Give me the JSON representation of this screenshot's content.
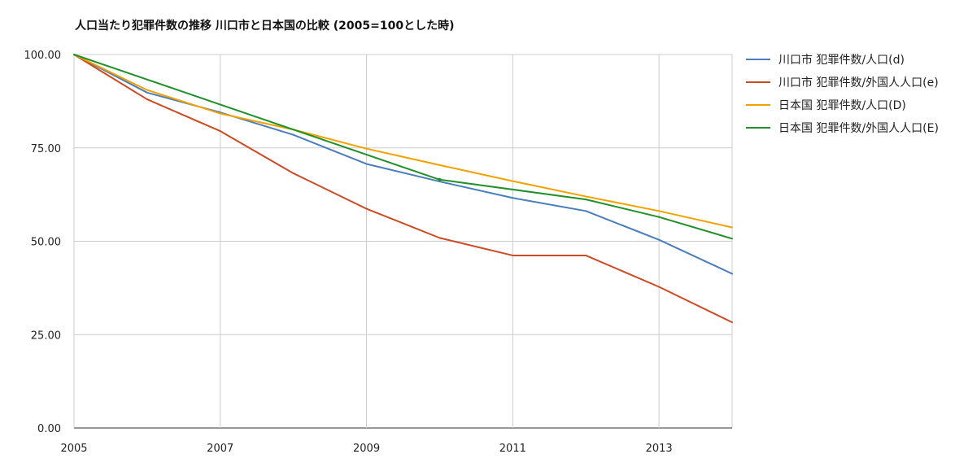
{
  "chart_data": {
    "type": "line",
    "title": "人口当たり犯罪件数の推移 川口市と日本国の比較 (2005=100とした時)",
    "xlabel": "",
    "ylabel": "",
    "xlim": [
      2005,
      2014
    ],
    "ylim": [
      0,
      100
    ],
    "x_ticks": [
      "2005",
      "2007",
      "2009",
      "2011",
      "2013"
    ],
    "y_ticks": [
      "0.00",
      "25.00",
      "50.00",
      "75.00",
      "100.00"
    ],
    "grid": true,
    "legend": "right",
    "series": [
      {
        "name": "川口市 犯罪件数/人口(d)",
        "color": "#4a7ebb",
        "points": [
          [
            2005,
            100
          ],
          [
            2006,
            89.8
          ],
          [
            2007,
            84.5
          ],
          [
            2008,
            78.5
          ],
          [
            2009,
            70.7
          ],
          [
            2010,
            66.0
          ],
          [
            2011,
            61.6
          ],
          [
            2012,
            58.1
          ],
          [
            2013,
            50.4
          ],
          [
            2014,
            41.3
          ]
        ]
      },
      {
        "name": "川口市 犯罪件数/外国人人口(e)",
        "color": "#cc4a24",
        "points": [
          [
            2005,
            100
          ],
          [
            2006,
            88.0
          ],
          [
            2007,
            79.5
          ],
          [
            2008,
            68.2
          ],
          [
            2009,
            58.7
          ],
          [
            2010,
            50.9
          ],
          [
            2011,
            46.2
          ],
          [
            2012,
            46.2
          ],
          [
            2013,
            37.8
          ],
          [
            2014,
            28.3
          ]
        ]
      },
      {
        "name": "日本国 犯罪件数/人口(D)",
        "color": "#f2a200",
        "points": [
          [
            2005,
            100
          ],
          [
            2006,
            90.5
          ],
          [
            2007,
            84.2
          ],
          [
            2008,
            79.9
          ],
          [
            2009,
            74.8
          ],
          [
            2010,
            70.4
          ],
          [
            2011,
            66.1
          ],
          [
            2012,
            62.0
          ],
          [
            2013,
            58.1
          ],
          [
            2014,
            53.7
          ]
        ]
      },
      {
        "name": "日本国 犯罪件数/外国人人口(E)",
        "color": "#21902a",
        "points": [
          [
            2005,
            100
          ],
          [
            2010,
            66.5
          ],
          [
            2012,
            61.2
          ],
          [
            2013,
            56.5
          ],
          [
            2014,
            50.7
          ]
        ]
      }
    ]
  }
}
